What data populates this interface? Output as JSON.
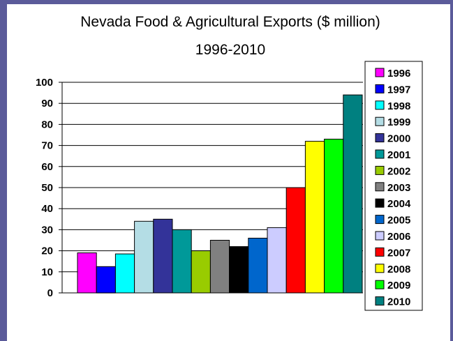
{
  "chart_data": {
    "type": "bar",
    "title": "Nevada Food & Agricultural Exports ($ million)",
    "subtitle": "1996-2010",
    "xlabel": "",
    "ylabel": "",
    "ylim": [
      0,
      100
    ],
    "y_ticks": [
      "0",
      "10",
      "20",
      "30",
      "40",
      "50",
      "60",
      "70",
      "80",
      "90",
      "100"
    ],
    "grid": true,
    "legend_position": "right",
    "series": [
      {
        "name": "1996",
        "value": 19,
        "color": "#ff00ff"
      },
      {
        "name": "1997",
        "value": 12.5,
        "color": "#0000ff"
      },
      {
        "name": "1998",
        "value": 18.5,
        "color": "#00ffff"
      },
      {
        "name": "1999",
        "value": 34,
        "color": "#b4dde5"
      },
      {
        "name": "2000",
        "value": 35,
        "color": "#333399"
      },
      {
        "name": "2001",
        "value": 30,
        "color": "#009999"
      },
      {
        "name": "2002",
        "value": 20,
        "color": "#99cc00"
      },
      {
        "name": "2003",
        "value": 25,
        "color": "#808080"
      },
      {
        "name": "2004",
        "value": 22,
        "color": "#000000"
      },
      {
        "name": "2005",
        "value": 26,
        "color": "#0066cc"
      },
      {
        "name": "2006",
        "value": 31,
        "color": "#ccccff"
      },
      {
        "name": "2007",
        "value": 50,
        "color": "#ff0000"
      },
      {
        "name": "2008",
        "value": 72,
        "color": "#ffff00"
      },
      {
        "name": "2009",
        "value": 73,
        "color": "#00ff00"
      },
      {
        "name": "2010",
        "value": 94,
        "color": "#008080"
      }
    ]
  }
}
